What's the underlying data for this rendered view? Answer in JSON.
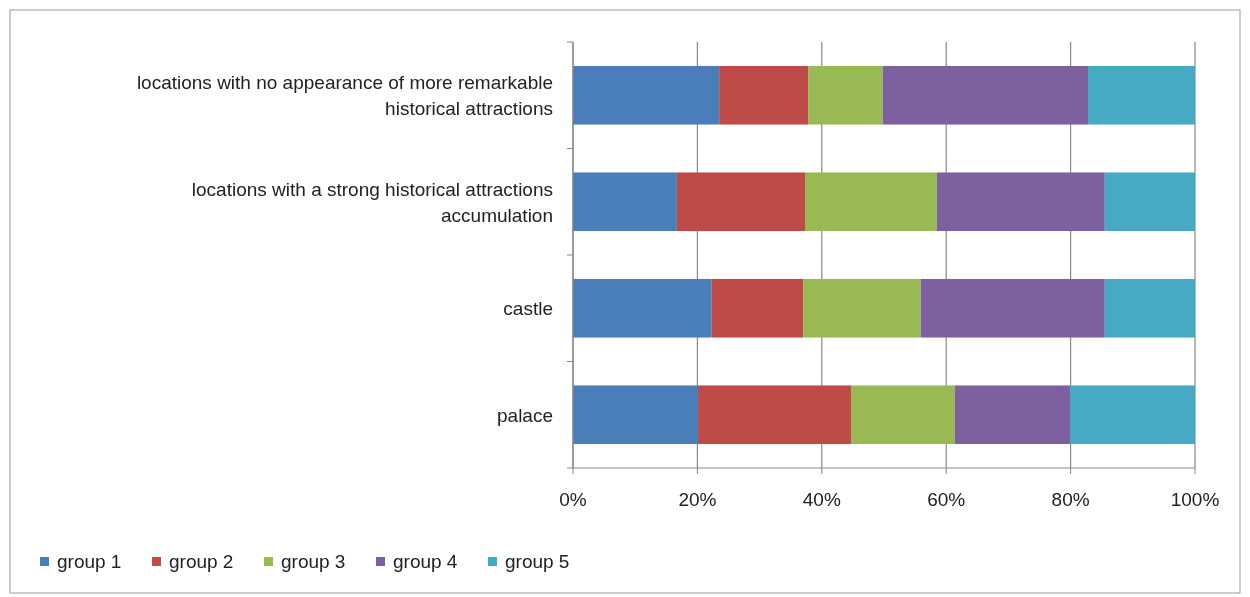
{
  "chart_data": {
    "type": "bar",
    "orientation": "horizontal",
    "stacked": true,
    "categories": [
      "locations with no appearance of more remarkable historical attractions",
      "locations with a strong historical attractions accumulation",
      "castle",
      "palace"
    ],
    "series": [
      {
        "name": "group 1",
        "color": "#4a7ebb",
        "values": [
          23.5,
          16.7,
          22.3,
          20.1
        ]
      },
      {
        "name": "group 2",
        "color": "#be4b48",
        "values": [
          14.3,
          20.6,
          14.7,
          24.6
        ]
      },
      {
        "name": "group 3",
        "color": "#98b954",
        "values": [
          12.0,
          21.2,
          18.9,
          16.7
        ]
      },
      {
        "name": "group 4",
        "color": "#7d60a0",
        "values": [
          33.0,
          27.0,
          29.6,
          18.5
        ]
      },
      {
        "name": "group 5",
        "color": "#46aac5",
        "values": [
          17.2,
          14.5,
          14.5,
          20.1
        ]
      }
    ],
    "xlim": [
      0,
      100
    ],
    "xticks": [
      {
        "value": 0,
        "label": "0%"
      },
      {
        "value": 20,
        "label": "20%"
      },
      {
        "value": 40,
        "label": "40%"
      },
      {
        "value": 60,
        "label": "60%"
      },
      {
        "value": 80,
        "label": "80%"
      },
      {
        "value": 100,
        "label": "100%"
      }
    ],
    "grid": "x",
    "legend": "bottom left"
  }
}
